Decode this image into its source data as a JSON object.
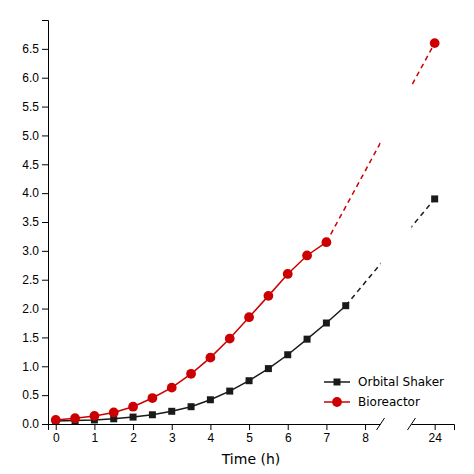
{
  "chart_data": {
    "type": "line",
    "x_label": "Time (h)",
    "series": [
      {
        "name": "Orbital Shaker",
        "color": "#1a1a1a",
        "marker": "square",
        "x": [
          0,
          0.5,
          1.0,
          1.5,
          2.0,
          2.5,
          3.0,
          3.5,
          4.0,
          4.5,
          5.0,
          5.5,
          6.0,
          6.5,
          7.0,
          7.5,
          24
        ],
        "values": [
          0.05,
          0.06,
          0.07,
          0.09,
          0.12,
          0.16,
          0.22,
          0.3,
          0.42,
          0.57,
          0.75,
          0.96,
          1.2,
          1.47,
          1.75,
          2.05,
          3.9
        ]
      },
      {
        "name": "Bioreactor",
        "color": "#cc0000",
        "marker": "circle",
        "x": [
          0,
          0.5,
          1.0,
          1.5,
          2.0,
          2.5,
          3.0,
          3.5,
          4.0,
          4.5,
          5.0,
          5.5,
          6.0,
          6.5,
          7.0,
          24
        ],
        "values": [
          0.07,
          0.1,
          0.14,
          0.2,
          0.3,
          0.45,
          0.63,
          0.87,
          1.15,
          1.48,
          1.85,
          2.22,
          2.6,
          2.92,
          3.15,
          6.6
        ]
      }
    ],
    "xlim": [
      -0.2,
      24.5
    ],
    "xticks": [
      0,
      1,
      2,
      3,
      4,
      5,
      6,
      7,
      8,
      24
    ],
    "ylim": [
      0,
      7.0
    ],
    "yticks": [
      {
        "value": 0.0,
        "label": "0.0"
      },
      0.5,
      {
        "value": 1.0,
        "label": "1.0"
      },
      1.5,
      {
        "value": 2.0,
        "label": "2.0"
      },
      2.5,
      {
        "value": 3.0,
        "label": "3.0"
      },
      3.5,
      {
        "value": 4.0,
        "label": "4.0"
      },
      4.5,
      {
        "value": 5.0,
        "label": "5.0"
      },
      5.5,
      {
        "value": 6.0,
        "label": "6.0"
      },
      6.5
    ],
    "legend": "lower right",
    "grid": false
  }
}
